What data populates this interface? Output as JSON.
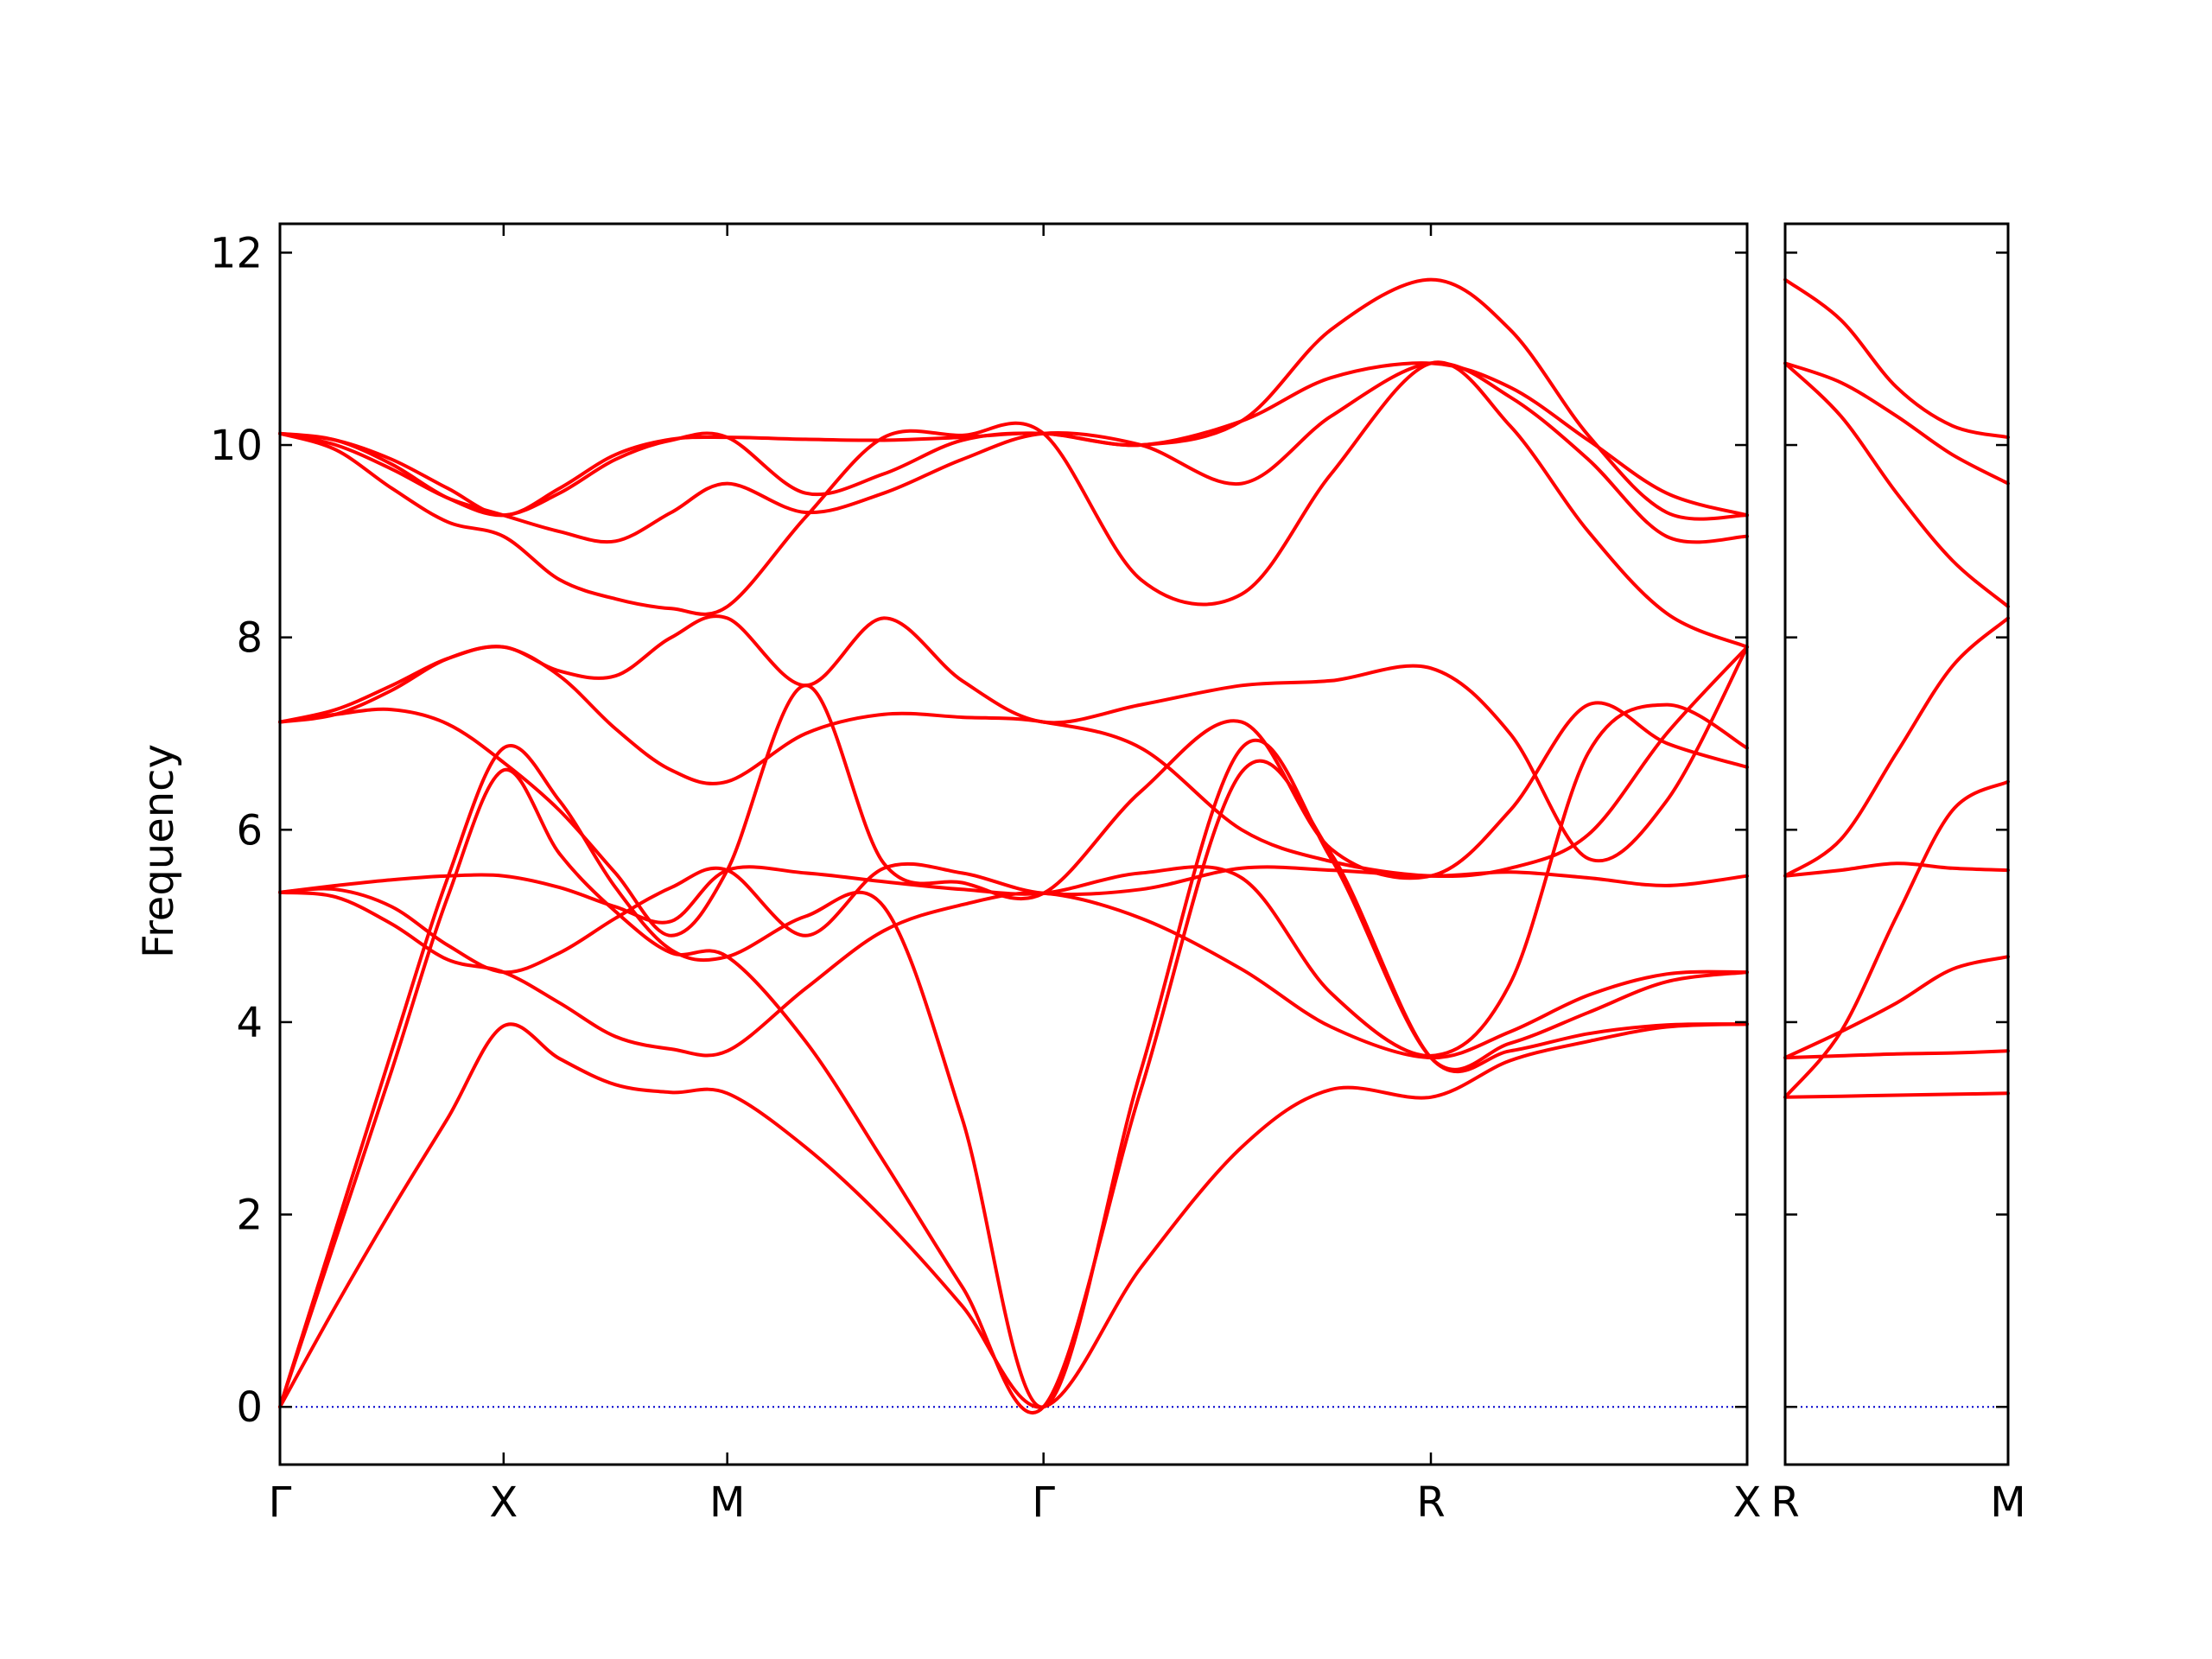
{
  "chart_data": {
    "type": "line",
    "ylabel": "Frequency",
    "xlabel": "",
    "ylim": [
      -0.6,
      12.3
    ],
    "yticks": [
      0,
      2,
      4,
      6,
      8,
      10,
      12
    ],
    "band_color": "#ff0000",
    "zero_line_color": "#0000cc",
    "zero_line_style": "dotted",
    "panels": [
      {
        "path_ticks": [
          {
            "label": "Γ",
            "x": 0
          },
          {
            "label": "X",
            "x": 1
          },
          {
            "label": "M",
            "x": 2
          },
          {
            "label": "Γ",
            "x": 3.414
          },
          {
            "label": "R",
            "x": 5.146
          },
          {
            "label": "X",
            "x": 6.56
          }
        ],
        "xlim": [
          0,
          6.56
        ],
        "series": [
          {
            "x": [
              0,
              0.25,
              0.5,
              0.75,
              1,
              1.25,
              1.5,
              1.75,
              2,
              2.35,
              2.7,
              3.05,
              3.414,
              3.85,
              4.3,
              4.7,
              5.146,
              5.5,
              5.85,
              6.2,
              6.56
            ],
            "y": [
              0,
              1.05,
              2.05,
              3.0,
              3.96,
              3.62,
              3.35,
              3.27,
              3.26,
              2.7,
              1.95,
              1.05,
              0,
              1.45,
              2.7,
              3.3,
              3.22,
              3.6,
              3.8,
              3.95,
              3.98
            ]
          },
          {
            "x": [
              0,
              0.25,
              0.5,
              0.75,
              1,
              1.25,
              1.5,
              1.75,
              2,
              2.35,
              2.7,
              3.05,
              3.414,
              3.85,
              4.3,
              4.7,
              5.146,
              5.5,
              5.85,
              6.2,
              6.56
            ],
            "y": [
              0,
              1.75,
              3.5,
              5.3,
              6.62,
              5.75,
              5.15,
              4.72,
              4.68,
              3.8,
              2.55,
              1.25,
              0,
              3.3,
              6.6,
              5.75,
              3.63,
              3.7,
              3.88,
              3.97,
              3.98
            ]
          },
          {
            "x": [
              0,
              0.25,
              0.5,
              0.75,
              1,
              1.25,
              1.5,
              1.75,
              2,
              2.35,
              2.7,
              3.05,
              3.414,
              3.85,
              4.3,
              4.7,
              5.146,
              5.5,
              5.85,
              6.2,
              6.56
            ],
            "y": [
              0,
              1.85,
              3.7,
              5.5,
              6.85,
              6.3,
              5.4,
              4.75,
              4.68,
              5.1,
              5.2,
              3.0,
              0,
              3.5,
              6.85,
              5.7,
              3.63,
              3.78,
              4.1,
              4.42,
              4.52
            ]
          },
          {
            "x": [
              0,
              0.25,
              0.5,
              0.75,
              1,
              1.25,
              1.5,
              1.75,
              2,
              2.35,
              2.7,
              3.05,
              3.414,
              3.85,
              4.3,
              4.7,
              5.146,
              5.5,
              5.85,
              6.2,
              6.56
            ],
            "y": [
              5.35,
              5.3,
              5.02,
              4.65,
              4.52,
              4.2,
              3.85,
              3.72,
              3.7,
              4.35,
              4.95,
              5.22,
              5.34,
              5.08,
              4.55,
              3.95,
              3.63,
              3.9,
              4.28,
              4.5,
              4.52
            ]
          },
          {
            "x": [
              0,
              0.25,
              0.5,
              0.75,
              1,
              1.25,
              1.5,
              1.75,
              2,
              2.35,
              2.7,
              3.05,
              3.414,
              3.85,
              4.3,
              4.7,
              5.146,
              5.5,
              5.85,
              6.2,
              6.56
            ],
            "y": [
              5.35,
              5.42,
              5.48,
              5.52,
              5.52,
              5.4,
              5.2,
              5.05,
              5.58,
              5.55,
              5.46,
              5.38,
              5.34,
              5.55,
              5.5,
              4.3,
              3.65,
              4.4,
              6.8,
              7.3,
              6.85
            ]
          },
          {
            "x": [
              0,
              0.25,
              0.5,
              0.75,
              1,
              1.25,
              1.5,
              1.75,
              2,
              2.35,
              2.7,
              3.05,
              3.414,
              3.85,
              4.3,
              4.7,
              5.146,
              5.5,
              5.85,
              6.2,
              6.56
            ],
            "y": [
              5.35,
              5.38,
              5.2,
              4.8,
              4.52,
              4.72,
              5.08,
              5.4,
              5.58,
              4.9,
              5.6,
              5.55,
              5.34,
              5.38,
              5.6,
              5.58,
              5.52,
              5.56,
              5.5,
              5.42,
              5.52
            ]
          },
          {
            "x": [
              0,
              0.25,
              0.5,
              0.75,
              1,
              1.25,
              1.5,
              1.75,
              2,
              2.35,
              2.7,
              3.05,
              3.414,
              3.85,
              4.3,
              4.7,
              5.146,
              5.5,
              5.85,
              6.2,
              6.56
            ],
            "y": [
              7.12,
              7.2,
              7.25,
              7.1,
              6.7,
              6.2,
              5.55,
              4.9,
              5.58,
              7.5,
              5.65,
              5.45,
              5.34,
              6.4,
              7.12,
              5.8,
              5.52,
              6.2,
              7.3,
              6.9,
              6.65
            ]
          },
          {
            "x": [
              0,
              0.25,
              0.5,
              0.75,
              1,
              1.25,
              1.5,
              1.75,
              2,
              2.35,
              2.7,
              3.05,
              3.414,
              3.85,
              4.3,
              4.7,
              5.146,
              5.5,
              5.85,
              6.2,
              6.56
            ],
            "y": [
              7.12,
              7.25,
              7.5,
              7.78,
              7.9,
              7.6,
              7.05,
              6.62,
              6.5,
              7.0,
              7.2,
              7.17,
              7.12,
              6.85,
              6.0,
              5.67,
              5.52,
              5.6,
              5.95,
              7.0,
              7.9
            ]
          },
          {
            "x": [
              0,
              0.25,
              0.5,
              0.75,
              1,
              1.25,
              1.5,
              1.75,
              2,
              2.35,
              2.7,
              3.05,
              3.414,
              3.85,
              4.3,
              4.7,
              5.146,
              5.5,
              5.85,
              6.2,
              6.56
            ],
            "y": [
              7.12,
              7.2,
              7.45,
              7.78,
              7.9,
              7.65,
              7.6,
              8.0,
              8.2,
              7.5,
              8.2,
              7.55,
              7.12,
              7.3,
              7.5,
              7.55,
              7.68,
              7.0,
              5.7,
              6.3,
              7.9
            ]
          },
          {
            "x": [
              0,
              0.25,
              0.5,
              0.75,
              1,
              1.25,
              1.5,
              1.75,
              2,
              2.35,
              2.7,
              3.05,
              3.414,
              3.85,
              4.3,
              4.7,
              5.146,
              5.5,
              5.85,
              6.2,
              6.56
            ],
            "y": [
              10.12,
              9.95,
              9.55,
              9.2,
              9.05,
              8.6,
              8.4,
              8.3,
              8.32,
              9.25,
              10.08,
              10.1,
              10.12,
              8.6,
              8.45,
              9.7,
              10.85,
              10.2,
              9.1,
              8.25,
              7.9
            ]
          },
          {
            "x": [
              0,
              0.25,
              0.5,
              0.75,
              1,
              1.25,
              1.5,
              1.75,
              2,
              2.35,
              2.7,
              3.05,
              3.414,
              3.85,
              4.3,
              4.7,
              5.146,
              5.5,
              5.85,
              6.2,
              6.56
            ],
            "y": [
              10.12,
              10.0,
              9.75,
              9.45,
              9.27,
              9.1,
              9.0,
              9.3,
              9.6,
              9.3,
              9.5,
              9.85,
              10.12,
              10.0,
              9.6,
              10.3,
              10.85,
              10.5,
              9.85,
              9.05,
              9.05
            ]
          },
          {
            "x": [
              0,
              0.25,
              0.5,
              0.75,
              1,
              1.25,
              1.5,
              1.75,
              2,
              2.35,
              2.7,
              3.05,
              3.414,
              3.85,
              4.3,
              4.7,
              5.146,
              5.5,
              5.85,
              6.2,
              6.56
            ],
            "y": [
              10.12,
              10.05,
              9.8,
              9.45,
              9.27,
              9.5,
              9.85,
              10.05,
              10.08,
              9.5,
              9.7,
              10.05,
              10.12,
              10.0,
              10.25,
              10.7,
              10.85,
              10.6,
              10.05,
              9.5,
              9.27
            ]
          },
          {
            "x": [
              0,
              0.25,
              0.5,
              0.75,
              1,
              1.25,
              1.5,
              1.75,
              2,
              2.35,
              2.7,
              3.05,
              3.414,
              3.85,
              4.3,
              4.7,
              5.146,
              5.5,
              5.85,
              6.2,
              6.56
            ],
            "y": [
              10.12,
              10.05,
              9.85,
              9.55,
              9.27,
              9.55,
              9.9,
              10.06,
              10.08,
              10.06,
              10.05,
              10.08,
              10.12,
              10.0,
              10.25,
              11.2,
              11.72,
              11.2,
              10.1,
              9.3,
              9.27
            ]
          }
        ]
      },
      {
        "path_ticks": [
          {
            "label": "R",
            "x": 0
          },
          {
            "label": "M",
            "x": 1
          }
        ],
        "xlim": [
          0,
          1
        ],
        "series": [
          {
            "x": [
              0,
              0.25,
              0.5,
              0.75,
              1
            ],
            "y": [
              3.22,
              3.23,
              3.24,
              3.25,
              3.26
            ]
          },
          {
            "x": [
              0,
              0.25,
              0.5,
              0.75,
              1
            ],
            "y": [
              3.63,
              3.65,
              3.67,
              3.68,
              3.7
            ]
          },
          {
            "x": [
              0,
              0.25,
              0.5,
              0.75,
              1
            ],
            "y": [
              3.22,
              3.9,
              5.1,
              6.2,
              6.5
            ]
          },
          {
            "x": [
              0,
              0.25,
              0.5,
              0.75,
              1
            ],
            "y": [
              3.63,
              3.9,
              4.2,
              4.55,
              4.68
            ]
          },
          {
            "x": [
              0,
              0.25,
              0.5,
              0.75,
              1
            ],
            "y": [
              5.52,
              5.58,
              5.65,
              5.6,
              5.58
            ]
          },
          {
            "x": [
              0,
              0.25,
              0.5,
              0.75,
              1
            ],
            "y": [
              5.52,
              5.9,
              6.8,
              7.7,
              8.2
            ]
          },
          {
            "x": [
              0,
              0.25,
              0.5,
              0.75,
              1
            ],
            "y": [
              10.85,
              10.3,
              9.5,
              8.8,
              8.32
            ]
          },
          {
            "x": [
              0,
              0.25,
              0.5,
              0.75,
              1
            ],
            "y": [
              10.85,
              10.65,
              10.3,
              9.9,
              9.6
            ]
          },
          {
            "x": [
              0,
              0.25,
              0.5,
              0.75,
              1
            ],
            "y": [
              11.72,
              11.3,
              10.6,
              10.2,
              10.08
            ]
          }
        ]
      }
    ]
  }
}
